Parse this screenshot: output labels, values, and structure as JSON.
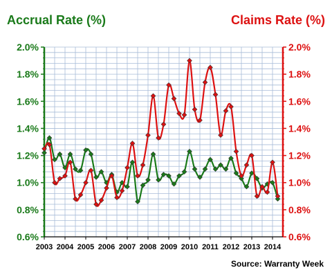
{
  "chart_data": {
    "type": "line",
    "title_left": "Accrual Rate (%)",
    "title_right": "Claims Rate (%)",
    "source": "Source: Warranty Week",
    "x_ticks": [
      "2003",
      "2004",
      "2005",
      "2006",
      "2007",
      "2008",
      "2009",
      "2010",
      "2011",
      "2012",
      "2013",
      "2014"
    ],
    "y_ticks": [
      "0.6%",
      "0.8%",
      "1.0%",
      "1.2%",
      "1.4%",
      "1.6%",
      "1.8%",
      "2.0%"
    ],
    "ylim": [
      0.6,
      2.0
    ],
    "xlim": [
      2003,
      2014.5
    ],
    "grid": true,
    "series": [
      {
        "name": "Accrual Rate",
        "axis": "left",
        "color": "#1a7a1a",
        "x": [
          2003.0,
          2003.25,
          2003.5,
          2003.75,
          2004.0,
          2004.25,
          2004.5,
          2004.75,
          2005.0,
          2005.25,
          2005.5,
          2005.75,
          2006.0,
          2006.25,
          2006.5,
          2006.75,
          2007.0,
          2007.25,
          2007.5,
          2007.75,
          2008.0,
          2008.25,
          2008.5,
          2008.75,
          2009.0,
          2009.25,
          2009.5,
          2009.75,
          2010.0,
          2010.25,
          2010.5,
          2010.75,
          2011.0,
          2011.25,
          2011.5,
          2011.75,
          2012.0,
          2012.25,
          2012.5,
          2012.75,
          2013.0,
          2013.25,
          2013.5,
          2013.75,
          2014.0,
          2014.25
        ],
        "values": [
          1.22,
          1.33,
          1.17,
          1.21,
          1.11,
          1.21,
          1.1,
          1.09,
          1.24,
          1.21,
          1.04,
          1.08,
          1.0,
          1.06,
          0.93,
          1.0,
          0.97,
          1.15,
          0.86,
          0.98,
          1.02,
          1.21,
          1.02,
          1.06,
          1.05,
          0.99,
          1.05,
          1.08,
          1.23,
          1.1,
          1.04,
          1.1,
          1.17,
          1.1,
          1.13,
          1.1,
          1.18,
          1.07,
          1.03,
          0.97,
          1.07,
          1.03,
          0.96,
          0.99,
          1.0,
          0.88
        ]
      },
      {
        "name": "Claims Rate",
        "axis": "right",
        "color": "#dd1111",
        "x": [
          2003.0,
          2003.25,
          2003.5,
          2003.75,
          2004.0,
          2004.25,
          2004.5,
          2004.75,
          2005.0,
          2005.25,
          2005.5,
          2005.75,
          2006.0,
          2006.25,
          2006.5,
          2006.75,
          2007.0,
          2007.25,
          2007.5,
          2007.75,
          2008.0,
          2008.25,
          2008.5,
          2008.75,
          2009.0,
          2009.25,
          2009.5,
          2009.75,
          2010.0,
          2010.25,
          2010.5,
          2010.75,
          2011.0,
          2011.25,
          2011.5,
          2011.75,
          2012.0,
          2012.25,
          2012.5,
          2012.75,
          2013.0,
          2013.25,
          2013.5,
          2013.75,
          2014.0,
          2014.25
        ],
        "values": [
          1.25,
          1.28,
          1.0,
          1.03,
          1.05,
          1.15,
          0.88,
          0.91,
          1.0,
          1.09,
          0.84,
          0.87,
          0.96,
          1.05,
          0.89,
          0.94,
          1.11,
          1.29,
          1.05,
          1.13,
          1.35,
          1.64,
          1.33,
          1.43,
          1.72,
          1.62,
          1.51,
          1.5,
          1.9,
          1.54,
          1.46,
          1.74,
          1.85,
          1.65,
          1.35,
          1.53,
          1.56,
          1.23,
          1.05,
          1.13,
          1.2,
          0.9,
          0.97,
          0.93,
          1.15,
          0.9
        ]
      }
    ]
  }
}
